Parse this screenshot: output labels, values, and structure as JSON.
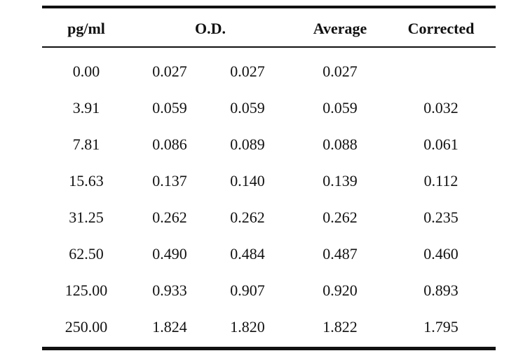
{
  "table": {
    "headers": {
      "pg": "pg/ml",
      "od": "O.D.",
      "average": "Average",
      "corrected": "Corrected"
    },
    "rows": [
      {
        "pg": "0.00",
        "od1": "0.027",
        "od2": "0.027",
        "average": "0.027",
        "corrected": ""
      },
      {
        "pg": "3.91",
        "od1": "0.059",
        "od2": "0.059",
        "average": "0.059",
        "corrected": "0.032"
      },
      {
        "pg": "7.81",
        "od1": "0.086",
        "od2": "0.089",
        "average": "0.088",
        "corrected": "0.061"
      },
      {
        "pg": "15.63",
        "od1": "0.137",
        "od2": "0.140",
        "average": "0.139",
        "corrected": "0.112"
      },
      {
        "pg": "31.25",
        "od1": "0.262",
        "od2": "0.262",
        "average": "0.262",
        "corrected": "0.235"
      },
      {
        "pg": "62.50",
        "od1": "0.490",
        "od2": "0.484",
        "average": "0.487",
        "corrected": "0.460"
      },
      {
        "pg": "125.00",
        "od1": "0.933",
        "od2": "0.907",
        "average": "0.920",
        "corrected": "0.893"
      },
      {
        "pg": "250.00",
        "od1": "1.824",
        "od2": "1.820",
        "average": "1.822",
        "corrected": "1.795"
      }
    ]
  }
}
